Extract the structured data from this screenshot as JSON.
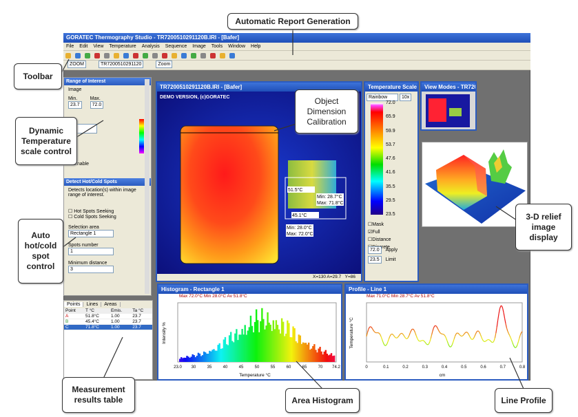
{
  "callouts": {
    "report": "Automatic Report Generation",
    "toolbar": "Toolbar",
    "temp_scale": "Dynamic Temperature scale control",
    "calibration": "Object Dimension Calibration",
    "hot_cold": "Auto hot/cold spot control",
    "relief": "3-D relief image display",
    "results": "Measurement results table",
    "histogram": "Area Histogram",
    "profile": "Line Profile"
  },
  "window": {
    "title": "GORATEC Thermography Studio - TR7200510291120B.IRI - [Bafer]",
    "menu": [
      "File",
      "Edit",
      "View",
      "Temperature",
      "Analysis",
      "Sequence",
      "Image",
      "Tools",
      "Window",
      "Help"
    ],
    "toolbar_fields": [
      "ZOOM",
      "TR7200510291120",
      "Zoom"
    ]
  },
  "range_panel": {
    "title": "Range of Interest",
    "subtitle": "Image",
    "min_label": "Min.",
    "max_label": "Max.",
    "min": "23.7",
    "max": "72.0",
    "checkbox": "Enable"
  },
  "spots_panel": {
    "title": "Detect Hot/Cold Spots",
    "description": "Detects location(s) within image range of interest.",
    "options": [
      "Hot Spots Seeking",
      "Cold Spots Seeking"
    ],
    "fields": [
      {
        "label": "Selection area",
        "value": "Rectangle 1"
      },
      {
        "label": "Spots number",
        "value": "1"
      },
      {
        "label": "Minimum distance",
        "value": "3"
      }
    ]
  },
  "results_table": {
    "tabs": [
      "Points",
      "Lines",
      "Areas"
    ],
    "columns": [
      "Point",
      "T °C",
      "Emis.",
      "Ta °C"
    ],
    "rows": [
      [
        "A",
        "51.8°C",
        "1.00",
        "23.7"
      ],
      [
        "B",
        "45.4°C",
        "1.00",
        "23.7"
      ],
      [
        "C",
        "71.8°C",
        "1.00",
        "23.7"
      ]
    ]
  },
  "image_window": {
    "title": "TR7200510291120B.IRI - [Bafer]",
    "watermark": "DEMO VERSION, (c)GORATEC",
    "labels": [
      "51.5°C",
      "45.1°C"
    ],
    "box1": [
      "Min: 28.7°C",
      "Max: 71.8°C"
    ],
    "box2": [
      "Min: 28.0°C",
      "Max: 72.0°C"
    ],
    "status": [
      "X=130 A=29.7",
      "Y=86"
    ]
  },
  "scale_window": {
    "title": "Temperature Scale",
    "palette": "Rainbow",
    "step": "10x",
    "ticks": [
      "72.0",
      "65.9",
      "59.9",
      "53.7",
      "47.6",
      "41.6",
      "35.5",
      "29.5",
      "23.5"
    ],
    "checks": [
      "Mask",
      "Full",
      "Distance",
      "Discrete"
    ],
    "values": [
      [
        "72.0",
        "Apply"
      ],
      [
        "23.5",
        "Limit"
      ]
    ]
  },
  "view_window": {
    "title": "View Modes - TR72005..."
  },
  "histogram_window": {
    "title": "Histogram - Rectangle 1",
    "stats": "Max 72.0°C  Min 28.0°C  Av 51.8°C",
    "ylabel": "Intensity %",
    "xlabel": "Temperature °C",
    "xticks": [
      "23.0",
      "30",
      "35",
      "40",
      "45",
      "50",
      "55",
      "60",
      "65",
      "70",
      "74.2"
    ]
  },
  "profile_window": {
    "title": "Profile - Line 1",
    "stats": "Max 71.0°C  Min 28.7°C  Av 51.8°C",
    "ylabel": "Temperature °C",
    "xlabel": "cm",
    "xticks": [
      "0",
      "0.1",
      "0.2",
      "0.3",
      "0.4",
      "0.5",
      "0.6",
      "0.7",
      "0.8"
    ]
  }
}
